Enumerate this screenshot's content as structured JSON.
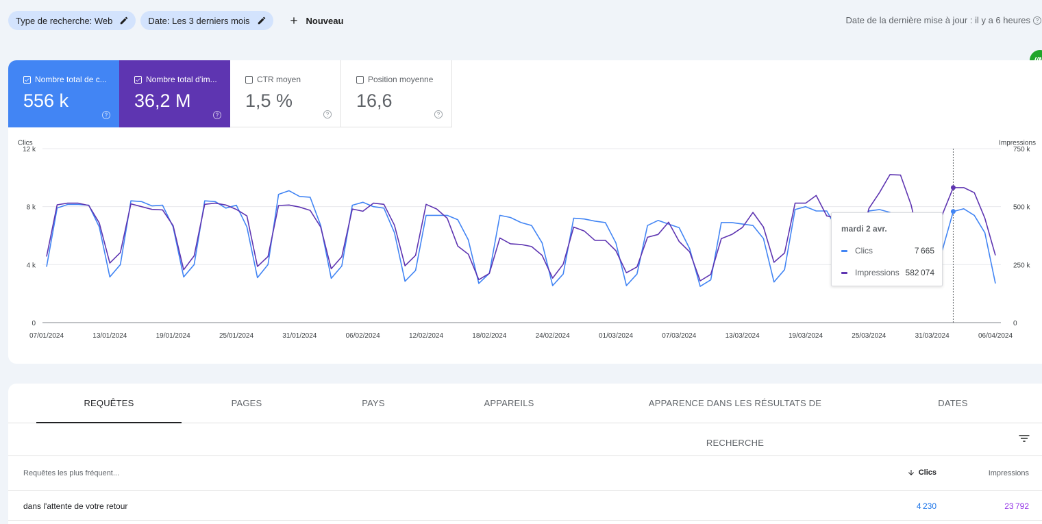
{
  "filters": {
    "search_type": "Type de recherche: Web",
    "date": "Date: Les 3 derniers mois",
    "new_label": "Nouveau"
  },
  "update_info": "Date de la dernière mise à jour : il y a 6 heures",
  "extension_label": "//M",
  "metrics": {
    "clicks": {
      "label": "Nombre total de c...",
      "value": "556 k",
      "checked": true
    },
    "impressions": {
      "label": "Nombre total d'im...",
      "value": "36,2 M",
      "checked": true
    },
    "ctr": {
      "label": "CTR moyen",
      "value": "1,5 %",
      "checked": false
    },
    "position": {
      "label": "Position moyenne",
      "value": "16,6",
      "checked": false
    }
  },
  "colors": {
    "clicks": "#4285f4",
    "impressions": "#5e35b1"
  },
  "chart_data": {
    "type": "line",
    "left_axis_label": "Clics",
    "right_axis_label": "Impressions",
    "left_ticks": [
      "0",
      "4 k",
      "8 k",
      "12 k"
    ],
    "right_ticks": [
      "0",
      "250 k",
      "500 k",
      "750 k"
    ],
    "left_range": [
      0,
      12000
    ],
    "right_range": [
      0,
      750000
    ],
    "x_tick_labels": [
      "07/01/2024",
      "13/01/2024",
      "19/01/2024",
      "25/01/2024",
      "31/01/2024",
      "06/02/2024",
      "12/02/2024",
      "18/02/2024",
      "24/02/2024",
      "01/03/2024",
      "07/03/2024",
      "13/03/2024",
      "19/03/2024",
      "25/03/2024",
      "31/03/2024",
      "06/04/2024"
    ],
    "x_start": "07/01/2024",
    "grid": true,
    "series": [
      {
        "name": "Clics",
        "axis": "left",
        "values": [
          3850,
          7900,
          8150,
          8150,
          8100,
          6600,
          3150,
          4000,
          8400,
          8350,
          8050,
          8100,
          6600,
          3150,
          4000,
          8400,
          8350,
          7900,
          8100,
          6600,
          3100,
          4000,
          8850,
          9100,
          8700,
          8650,
          6700,
          3050,
          3900,
          8100,
          8300,
          8000,
          7900,
          6200,
          2850,
          3600,
          7400,
          7400,
          7400,
          7100,
          5700,
          2700,
          3400,
          7400,
          7250,
          6900,
          6700,
          5500,
          2550,
          3350,
          7200,
          7150,
          7000,
          6900,
          5500,
          2550,
          3350,
          6700,
          7050,
          6800,
          6550,
          5100,
          2500,
          2950,
          6900,
          6900,
          6800,
          6700,
          5800,
          2800,
          3650,
          7800,
          8000,
          7700,
          7700,
          6400,
          3000,
          3800,
          7700,
          7800,
          7600,
          6700,
          5100,
          2600,
          2700,
          5100,
          7665,
          7850,
          7400,
          6200,
          2700
        ]
      },
      {
        "name": "Impressions",
        "axis": "right",
        "values": [
          285000,
          508000,
          515000,
          515000,
          505000,
          430000,
          257000,
          302000,
          512000,
          500000,
          488000,
          486000,
          418000,
          228000,
          288000,
          510000,
          515000,
          507000,
          488000,
          460000,
          242000,
          285000,
          505000,
          507000,
          498000,
          484000,
          412000,
          232000,
          284000,
          490000,
          480000,
          515000,
          510000,
          420000,
          245000,
          290000,
          510000,
          490000,
          450000,
          330000,
          295000,
          185000,
          212000,
          365000,
          340000,
          337000,
          328000,
          290000,
          192000,
          252000,
          412000,
          395000,
          355000,
          355000,
          310000,
          215000,
          240000,
          368000,
          380000,
          433000,
          350000,
          305000,
          180000,
          208000,
          362000,
          380000,
          410000,
          475000,
          412000,
          260000,
          300000,
          515000,
          515000,
          548000,
          460000,
          450000,
          258000,
          310000,
          492000,
          560000,
          638000,
          636000,
          508000,
          312000,
          335000,
          470000,
          582074,
          582000,
          560000,
          450000,
          290000
        ]
      }
    ]
  },
  "tooltip": {
    "title": "mardi 2 avr.",
    "index": 86,
    "rows": [
      {
        "name": "Clics",
        "value": "7665"
      },
      {
        "name": "Impressions",
        "value": "582074"
      }
    ]
  },
  "tabs": [
    "REQUÊTES",
    "PAGES",
    "PAYS",
    "APPAREILS",
    "APPARENCE DANS LES RÉSULTATS DE RECHERCHE",
    "DATES"
  ],
  "table": {
    "header": {
      "query": "Requêtes les plus fréquent...",
      "clicks": "Clics",
      "impressions": "Impressions"
    },
    "rows": [
      {
        "query": "dans l'attente de votre retour",
        "clicks": "4230",
        "impressions": "23792"
      }
    ]
  }
}
